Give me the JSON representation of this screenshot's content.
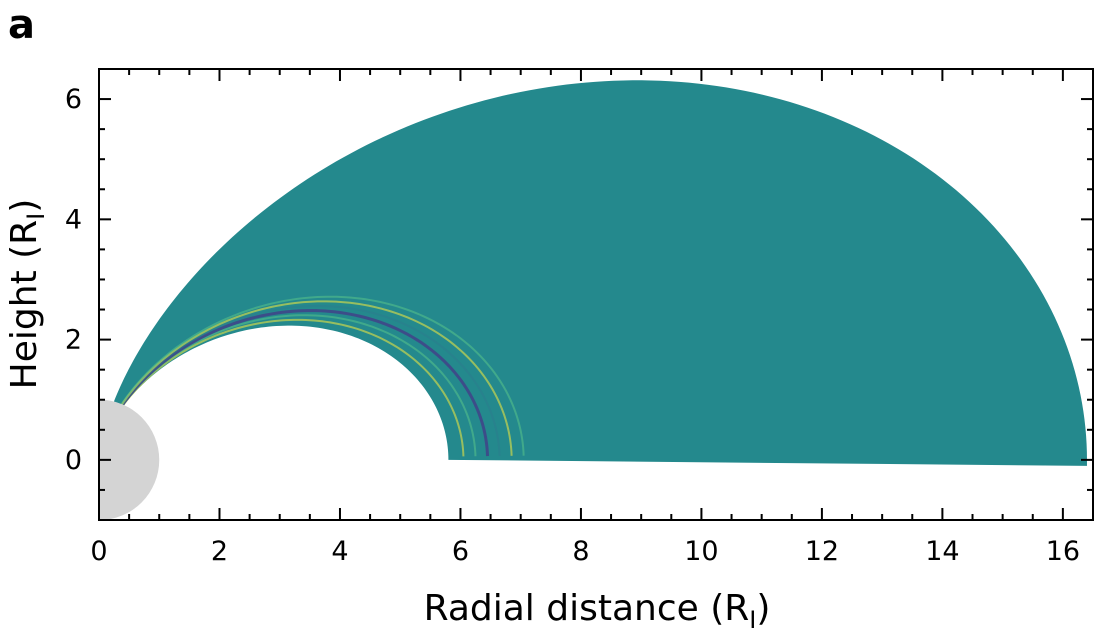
{
  "panel_label": "a",
  "chart_data": {
    "type": "field-map",
    "xlabel": "Radial distance (R",
    "xlabel_sub": "I",
    "xlabel_close": ")",
    "ylabel": "Height (R",
    "ylabel_sub": "I",
    "ylabel_close": ")",
    "xlim": [
      0,
      16.5
    ],
    "ylim": [
      -1,
      6.5
    ],
    "xticks": [
      0,
      2,
      4,
      6,
      8,
      10,
      12,
      14,
      16
    ],
    "yticks": [
      0,
      2,
      4,
      6
    ],
    "background_field_color": "#24898d",
    "planet_color": "#d4d4d4",
    "planet_radius": 1,
    "field_lines": {
      "inner_equator_crossing": 5.8,
      "outer_equator_crossing": 16.4,
      "footpoint_x": 0.3,
      "footpoint_y": 0.95
    },
    "wave_packet": {
      "center_field_line_L": 7.0,
      "wavefront_colors": [
        "#f6e93c",
        "#58c28a",
        "#3e4a89",
        "#2b7b8e"
      ]
    }
  }
}
